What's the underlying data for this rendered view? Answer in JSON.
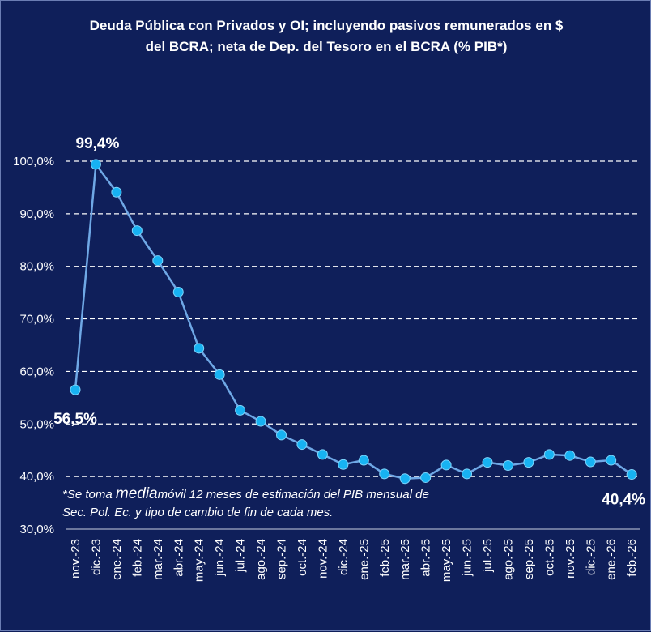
{
  "chart_data": {
    "type": "line",
    "title": "Deuda Pública con Privados y OI; incluyendo pasivos remunerados en $\ndel BCRA; neta de Dep. del Tesoro en el BCRA (% PIB*)",
    "categories": [
      "nov.-23",
      "dic.-23",
      "ene.-24",
      "feb.-24",
      "mar.-24",
      "abr.-24",
      "may.-24",
      "jun.-24",
      "jul.-24",
      "ago.-24",
      "sep.-24",
      "oct.-24",
      "nov.-24",
      "dic.-24",
      "ene.-25",
      "feb.-25",
      "mar.-25",
      "abr.-25",
      "may.-25",
      "jun.-25",
      "jul.-25",
      "ago.-25",
      "sep.-25",
      "oct.-25",
      "nov.-25",
      "dic.-25",
      "ene.-26",
      "feb.-26"
    ],
    "series": [
      {
        "values": [
          56.5,
          99.4,
          94.1,
          86.8,
          81.1,
          75.1,
          64.4,
          59.4,
          52.6,
          50.5,
          47.9,
          46.1,
          44.2,
          42.3,
          43.1,
          40.5,
          39.6,
          39.8,
          42.2,
          40.5,
          42.7,
          42.1,
          42.7,
          44.2,
          44.0,
          42.8,
          43.1,
          40.4
        ]
      }
    ],
    "yticks": [
      "30,0%",
      "40,0%",
      "50,0%",
      "60,0%",
      "70,0%",
      "80,0%",
      "90,0%",
      "100,0%"
    ],
    "ylim": [
      30,
      100
    ],
    "grid": "horizontal dashed",
    "annotations": [
      "56,5%",
      "99,4%",
      "40,4%"
    ],
    "colors": {
      "line": "#6fa8e6",
      "marker": "#17b2f2",
      "grid": "#ffffff",
      "background": "#0f1f5a"
    }
  },
  "footnote": {
    "part1": "*Se toma ",
    "part2": "media",
    "part3": "móvil 12 meses de estimación del PIB mensual de",
    "line2": "Sec. Pol. Ec. y tipo de cambio de fin de cada mes."
  }
}
